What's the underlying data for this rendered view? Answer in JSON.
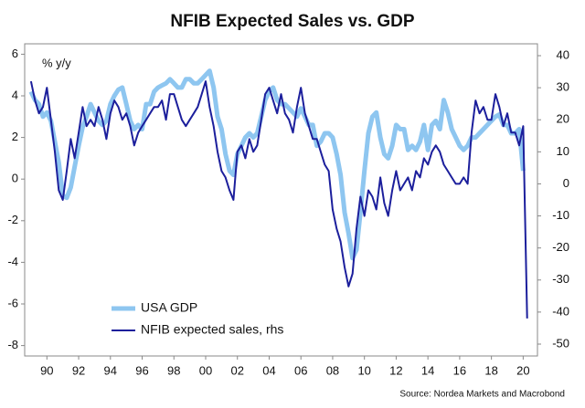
{
  "chart_data": {
    "type": "line",
    "title": "NFIB Expected Sales vs. GDP",
    "y_label": "% y/y",
    "source": "Source: Nordea Markets and Macrobond",
    "x": [
      1989,
      1989.25,
      1989.5,
      1989.75,
      1990,
      1990.25,
      1990.5,
      1990.75,
      1991,
      1991.25,
      1991.5,
      1991.75,
      1992,
      1992.25,
      1992.5,
      1992.75,
      1993,
      1993.25,
      1993.5,
      1993.75,
      1994,
      1994.25,
      1994.5,
      1994.75,
      1995,
      1995.25,
      1995.5,
      1995.75,
      1996,
      1996.25,
      1996.5,
      1996.75,
      1997,
      1997.25,
      1997.5,
      1997.75,
      1998,
      1998.25,
      1998.5,
      1998.75,
      1999,
      1999.25,
      1999.5,
      1999.75,
      2000,
      2000.25,
      2000.5,
      2000.75,
      2001,
      2001.25,
      2001.5,
      2001.75,
      2002,
      2002.25,
      2002.5,
      2002.75,
      2003,
      2003.25,
      2003.5,
      2003.75,
      2004,
      2004.25,
      2004.5,
      2004.75,
      2005,
      2005.25,
      2005.5,
      2005.75,
      2006,
      2006.25,
      2006.5,
      2006.75,
      2007,
      2007.25,
      2007.5,
      2007.75,
      2008,
      2008.25,
      2008.5,
      2008.75,
      2009,
      2009.25,
      2009.5,
      2009.75,
      2010,
      2010.25,
      2010.5,
      2010.75,
      2011,
      2011.25,
      2011.5,
      2011.75,
      2012,
      2012.25,
      2012.5,
      2012.75,
      2013,
      2013.25,
      2013.5,
      2013.75,
      2014,
      2014.25,
      2014.5,
      2014.75,
      2015,
      2015.25,
      2015.5,
      2015.75,
      2016,
      2016.25,
      2016.5,
      2016.75,
      2017,
      2017.25,
      2017.5,
      2017.75,
      2018,
      2018.25,
      2018.5,
      2018.75,
      2019,
      2019.25,
      2019.5,
      2019.75,
      2020,
      2020.25
    ],
    "series": [
      {
        "name": "USA GDP",
        "color": "#8ec6f0",
        "values": [
          4.2,
          3.8,
          3.6,
          3.0,
          3.2,
          2.8,
          1.8,
          0.8,
          -0.8,
          -0.9,
          -0.4,
          0.6,
          1.6,
          2.5,
          3.0,
          3.6,
          3.2,
          2.8,
          2.6,
          2.8,
          3.6,
          4.0,
          4.3,
          4.4,
          3.6,
          2.8,
          2.4,
          2.6,
          2.4,
          3.6,
          3.6,
          4.2,
          4.4,
          4.5,
          4.6,
          4.8,
          4.6,
          4.4,
          4.4,
          4.8,
          4.8,
          4.6,
          4.6,
          4.8,
          5.0,
          5.2,
          4.4,
          3.0,
          2.4,
          1.2,
          0.4,
          0.2,
          1.2,
          1.6,
          2.0,
          2.2,
          2.0,
          2.2,
          3.0,
          3.8,
          4.2,
          4.4,
          3.8,
          3.6,
          3.6,
          3.4,
          3.2,
          3.0,
          3.4,
          3.0,
          2.6,
          2.6,
          1.6,
          1.8,
          2.2,
          2.2,
          2.0,
          1.2,
          0.2,
          -1.6,
          -2.6,
          -3.8,
          -3.4,
          -1.6,
          0.4,
          2.2,
          3.0,
          3.2,
          2.0,
          1.2,
          1.0,
          1.6,
          2.6,
          2.4,
          2.4,
          1.4,
          1.6,
          1.4,
          1.8,
          2.6,
          1.4,
          2.6,
          2.8,
          2.4,
          3.8,
          3.2,
          2.4,
          2.0,
          1.6,
          1.4,
          1.6,
          2.0,
          2.0,
          2.2,
          2.4,
          2.6,
          2.8,
          3.0,
          3.1,
          2.6,
          2.6,
          2.2,
          2.2,
          2.4,
          0.4,
          null
        ]
      },
      {
        "name": "NFIB expected sales, rhs",
        "color": "#1c1f9c",
        "axis": "y2",
        "values": [
          32,
          26,
          22,
          24,
          30,
          20,
          10,
          -2,
          -5,
          4,
          14,
          8,
          16,
          24,
          18,
          20,
          18,
          24,
          20,
          14,
          22,
          26,
          24,
          20,
          22,
          18,
          12,
          16,
          18,
          20,
          22,
          24,
          24,
          26,
          20,
          28,
          28,
          24,
          20,
          18,
          20,
          22,
          24,
          28,
          32,
          24,
          18,
          10,
          4,
          2,
          -2,
          -5,
          10,
          12,
          8,
          14,
          10,
          12,
          20,
          28,
          30,
          26,
          22,
          28,
          22,
          20,
          16,
          24,
          30,
          22,
          18,
          14,
          14,
          10,
          6,
          4,
          -8,
          -14,
          -18,
          -26,
          -32,
          -28,
          -14,
          -4,
          -10,
          -2,
          -4,
          -8,
          2,
          -6,
          -10,
          -2,
          4,
          -2,
          0,
          2,
          -2,
          4,
          2,
          8,
          6,
          10,
          12,
          10,
          6,
          4,
          2,
          0,
          0,
          2,
          0,
          16,
          26,
          22,
          24,
          20,
          20,
          28,
          24,
          18,
          22,
          16,
          16,
          12,
          18,
          -42
        ]
      }
    ],
    "xlim": [
      1988.6,
      2020.9
    ],
    "xticks": [
      {
        "value": 1990,
        "label": "90"
      },
      {
        "value": 1992,
        "label": "92"
      },
      {
        "value": 1994,
        "label": "94"
      },
      {
        "value": 1996,
        "label": "96"
      },
      {
        "value": 1998,
        "label": "98"
      },
      {
        "value": 2000,
        "label": "00"
      },
      {
        "value": 2002,
        "label": "02"
      },
      {
        "value": 2004,
        "label": "04"
      },
      {
        "value": 2006,
        "label": "06"
      },
      {
        "value": 2008,
        "label": "08"
      },
      {
        "value": 2010,
        "label": "10"
      },
      {
        "value": 2012,
        "label": "12"
      },
      {
        "value": 2014,
        "label": "14"
      },
      {
        "value": 2016,
        "label": "16"
      },
      {
        "value": 2018,
        "label": "18"
      },
      {
        "value": 2020,
        "label": "20"
      }
    ],
    "ylim": [
      -8.5,
      6.5
    ],
    "yticks": [
      -8,
      -6,
      -4,
      -2,
      0,
      2,
      4,
      6
    ],
    "y2lim": [
      -53.7,
      43.7
    ],
    "y2ticks": [
      -50,
      -40,
      -30,
      -20,
      -10,
      0,
      10,
      20,
      30,
      40
    ]
  }
}
